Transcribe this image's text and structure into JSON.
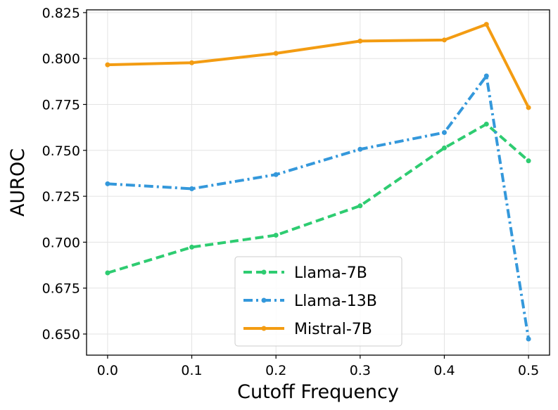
{
  "chart_data": {
    "type": "line",
    "title": "",
    "xlabel": "Cutoff Frequency",
    "ylabel": "AUROC",
    "xlim": [
      -0.025,
      0.525
    ],
    "ylim": [
      0.6385,
      0.8265
    ],
    "xticks": [
      0.0,
      0.1,
      0.2,
      0.3,
      0.4,
      0.5
    ],
    "xtick_labels": [
      "0.0",
      "0.1",
      "0.2",
      "0.3",
      "0.4",
      "0.5"
    ],
    "yticks": [
      0.65,
      0.675,
      0.7,
      0.725,
      0.75,
      0.775,
      0.8,
      0.825
    ],
    "ytick_labels": [
      "0.650",
      "0.675",
      "0.700",
      "0.725",
      "0.750",
      "0.775",
      "0.800",
      "0.825"
    ],
    "grid": true,
    "legend_position": "lower-center",
    "series": [
      {
        "name": "Llama-7B",
        "color": "#2ecc71",
        "dash": "dashed",
        "x": [
          0.0,
          0.1,
          0.2,
          0.3,
          0.4,
          0.45,
          0.5
        ],
        "y": [
          0.6833,
          0.6973,
          0.7038,
          0.7198,
          0.7513,
          0.7643,
          0.7443
        ]
      },
      {
        "name": "Llama-13B",
        "color": "#3498db",
        "dash": "dashdot",
        "x": [
          0.0,
          0.1,
          0.2,
          0.3,
          0.4,
          0.45,
          0.5
        ],
        "y": [
          0.7318,
          0.7291,
          0.7368,
          0.7506,
          0.7597,
          0.7905,
          0.6473
        ]
      },
      {
        "name": "Mistral-7B",
        "color": "#f39c12",
        "dash": "solid",
        "x": [
          0.0,
          0.1,
          0.2,
          0.3,
          0.4,
          0.45,
          0.5
        ],
        "y": [
          0.7966,
          0.7977,
          0.8028,
          0.8095,
          0.8101,
          0.8186,
          0.7733
        ]
      }
    ]
  }
}
